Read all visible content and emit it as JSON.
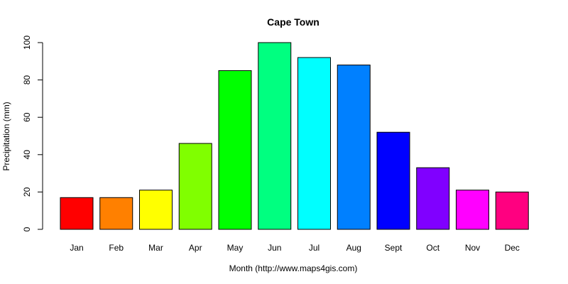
{
  "chart_data": {
    "type": "bar",
    "title": "Cape Town",
    "xlabel": "Month (http://www.maps4gis.com)",
    "ylabel": "Precipitation (mm)",
    "categories": [
      "Jan",
      "Feb",
      "Mar",
      "Apr",
      "May",
      "Jun",
      "Jul",
      "Aug",
      "Sept",
      "Oct",
      "Nov",
      "Dec"
    ],
    "values": [
      17,
      17,
      21,
      46,
      85,
      100,
      92,
      88,
      52,
      33,
      21,
      20
    ],
    "colors": [
      "#FF0000",
      "#FF8000",
      "#FFFF00",
      "#80FF00",
      "#00FF00",
      "#00FF80",
      "#00FFFF",
      "#0080FF",
      "#0000FF",
      "#8000FF",
      "#FF00FF",
      "#FF0080"
    ],
    "yticks": [
      0,
      20,
      40,
      60,
      80,
      100
    ],
    "ylim": [
      0,
      100
    ],
    "grid": false,
    "legend": "none"
  }
}
